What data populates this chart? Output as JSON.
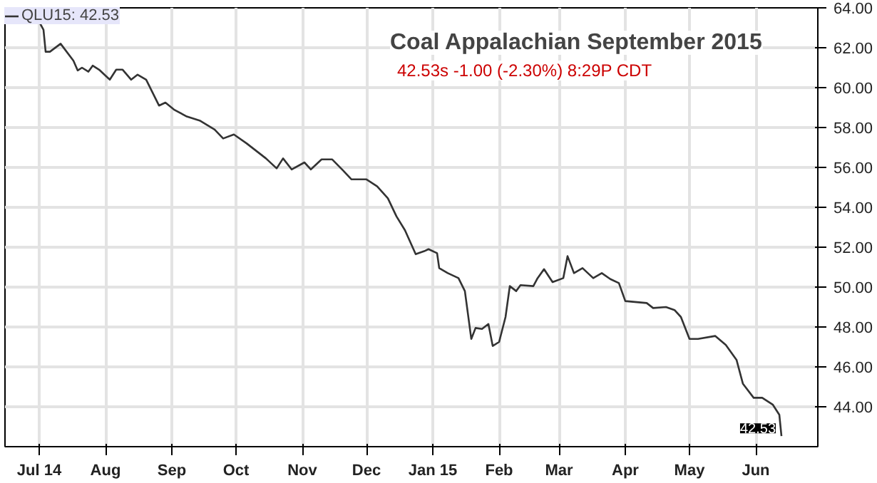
{
  "chart_data": {
    "type": "line",
    "title": "Coal Appalachian September 2015",
    "subtitle": "42.53s  -1.00 (-2.30%)  8:29P CDT",
    "x": [
      "2014-07-01",
      "2014-07-03",
      "2014-07-04",
      "2014-07-06",
      "2014-07-11",
      "2014-07-17",
      "2014-07-19",
      "2014-07-21",
      "2014-07-24",
      "2014-07-26",
      "2014-07-29",
      "2014-08-01",
      "2014-08-03",
      "2014-08-06",
      "2014-08-09",
      "2014-08-13",
      "2014-08-16",
      "2014-08-20",
      "2014-08-26",
      "2014-08-29",
      "2014-09-02",
      "2014-09-08",
      "2014-09-14",
      "2014-09-21",
      "2014-09-25",
      "2014-09-30",
      "2014-10-06",
      "2014-10-15",
      "2014-10-20",
      "2014-10-23",
      "2014-10-27",
      "2014-11-02",
      "2014-11-05",
      "2014-11-10",
      "2014-11-15",
      "2014-11-20",
      "2014-11-24",
      "2014-12-01",
      "2014-12-06",
      "2014-12-11",
      "2014-12-15",
      "2014-12-19",
      "2014-12-24",
      "2014-12-28",
      "2014-12-30",
      "2015-01-03",
      "2015-01-04",
      "2015-01-08",
      "2015-01-13",
      "2015-01-16",
      "2015-01-19",
      "2015-01-21",
      "2015-01-24",
      "2015-01-27",
      "2015-01-29",
      "2015-02-01",
      "2015-02-04",
      "2015-02-06",
      "2015-02-09",
      "2015-02-11",
      "2015-02-17",
      "2015-02-19",
      "2015-02-22",
      "2015-02-26",
      "2015-03-03",
      "2015-03-05",
      "2015-03-08",
      "2015-03-12",
      "2015-03-17",
      "2015-03-21",
      "2015-03-25",
      "2015-03-29",
      "2015-04-01",
      "2015-04-11",
      "2015-04-14",
      "2015-04-20",
      "2015-04-24",
      "2015-04-27",
      "2015-05-01",
      "2015-05-05",
      "2015-05-13",
      "2015-05-18",
      "2015-05-23",
      "2015-05-26",
      "2015-05-31",
      "2015-06-04",
      "2015-06-09",
      "2015-06-12",
      "2015-06-13"
    ],
    "series": [
      {
        "name": "QLU15: 42.53",
        "color": "#333333",
        "values": [
          63.3,
          62.9,
          61.8,
          61.8,
          62.2,
          61.35,
          60.86,
          61.0,
          60.8,
          61.1,
          60.9,
          60.6,
          60.4,
          60.9,
          60.9,
          60.4,
          60.65,
          60.4,
          59.1,
          59.25,
          58.9,
          58.55,
          58.35,
          57.9,
          57.45,
          57.65,
          57.2,
          56.45,
          55.95,
          56.45,
          55.9,
          56.25,
          55.9,
          56.4,
          56.4,
          55.85,
          55.4,
          55.4,
          55.05,
          54.45,
          53.55,
          52.85,
          51.65,
          51.8,
          51.9,
          51.7,
          50.95,
          50.7,
          50.45,
          49.8,
          47.4,
          47.95,
          47.9,
          48.15,
          47.05,
          47.25,
          48.5,
          50.05,
          49.8,
          50.1,
          50.05,
          50.45,
          50.9,
          50.25,
          50.45,
          51.55,
          50.7,
          50.95,
          50.45,
          50.7,
          50.4,
          50.2,
          49.3,
          49.2,
          48.95,
          49.0,
          48.85,
          48.5,
          47.4,
          47.4,
          47.55,
          47.1,
          46.35,
          45.15,
          44.45,
          44.45,
          44.1,
          43.6,
          42.53
        ]
      }
    ],
    "annotations": [
      {
        "text": "42.53",
        "x": "2015-06-13",
        "y": 42.53
      }
    ],
    "xlim": [
      "2014-06-15",
      "2015-06-30"
    ],
    "xticks": [
      {
        "value": "2014-07-01",
        "label": "Jul 14"
      },
      {
        "value": "2014-08-01",
        "label": "Aug"
      },
      {
        "value": "2014-09-01",
        "label": "Sep"
      },
      {
        "value": "2014-10-01",
        "label": "Oct"
      },
      {
        "value": "2014-11-01",
        "label": "Nov"
      },
      {
        "value": "2014-12-01",
        "label": "Dec"
      },
      {
        "value": "2015-01-01",
        "label": "Jan 15"
      },
      {
        "value": "2015-02-01",
        "label": "Feb"
      },
      {
        "value": "2015-03-01",
        "label": "Mar"
      },
      {
        "value": "2015-04-01",
        "label": "Apr"
      },
      {
        "value": "2015-05-01",
        "label": "May"
      },
      {
        "value": "2015-06-01",
        "label": "Jun"
      }
    ],
    "ylim": [
      42,
      64
    ],
    "yticks": [
      {
        "value": 44,
        "label": "44.00"
      },
      {
        "value": 46,
        "label": "46.00"
      },
      {
        "value": 48,
        "label": "48.00"
      },
      {
        "value": 50,
        "label": "50.00"
      },
      {
        "value": 52,
        "label": "52.00"
      },
      {
        "value": 54,
        "label": "54.00"
      },
      {
        "value": 56,
        "label": "56.00"
      },
      {
        "value": 58,
        "label": "58.00"
      },
      {
        "value": 60,
        "label": "60.00"
      },
      {
        "value": 62,
        "label": "62.00"
      },
      {
        "value": 64,
        "label": "64.00"
      }
    ],
    "grid": true,
    "legend": "top left",
    "marker": "none",
    "line_style": "solid"
  }
}
